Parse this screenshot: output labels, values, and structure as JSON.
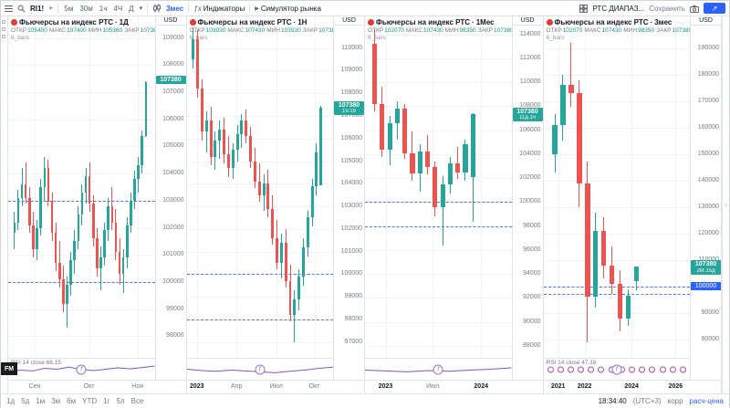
{
  "colors": {
    "up": "#26a69a",
    "down": "#ef5350",
    "accent": "#2962ff",
    "grid": "#f0f3fa",
    "rsi": "#7e57c2"
  },
  "toolbar": {
    "symbol": "RI1!",
    "compare": "+",
    "timeframes": [
      "5м",
      "30м",
      "1ч",
      "4Ч",
      "Д"
    ],
    "interval_label": "3мес",
    "indicators_label": "Индикаторы",
    "simulator_label": "Симулятор рынка",
    "layout_name": "РТС ДИАПАЗ...",
    "save_label": "Сохранить",
    "icons": {
      "caret": "▾",
      "publish": "↗",
      "simulator": "▶",
      "indicators": "ƒx",
      "collapse": "‹"
    }
  },
  "footer": {
    "ranges": [
      "1д",
      "5д",
      "1м",
      "3м",
      "6м",
      "YTD",
      "1г",
      "5л",
      "Все"
    ],
    "clock": "18:34:40",
    "timezone": "(UTC+3)",
    "adjust_label": "корр",
    "settlement_label": "расч-цена"
  },
  "watermark": "FM",
  "panels": [
    {
      "title": "Фьючерсы на индекс РТС",
      "sep": "·",
      "interval": "1Д",
      "currency": "USD",
      "study_label": "6_bars",
      "ohlc": {
        "o_label": "ОТКР",
        "o": "105400",
        "h_label": "МАКС",
        "h": "107400",
        "l_label": "МИН",
        "l": "105360",
        "c_label": "ЗАКР",
        "c": "107380"
      },
      "badge": {
        "value": "107380"
      },
      "rsi_label": "RSI 14 close 68.15",
      "rsi_points": [
        0.35,
        0.45,
        0.4,
        0.55,
        0.5,
        0.62,
        0.48,
        0.42,
        0.5,
        0.58,
        0.52,
        0.6,
        0.68
      ],
      "chart_data": {
        "type": "candlestick",
        "price_min": 97200,
        "price_max": 109800,
        "ticks": [
          109000,
          108000,
          107000,
          106000,
          105000,
          104000,
          103000,
          102000,
          101000,
          100000,
          99000,
          98000
        ],
        "levels": [
          {
            "price": 103000
          },
          {
            "price": 100000
          }
        ],
        "x_start": 0.03,
        "x_end": 0.95,
        "x_labels": [
          {
            "t": "Сен",
            "pos": 0.18
          },
          {
            "t": "Окт",
            "pos": 0.55
          },
          {
            "t": "Ноя",
            "pos": 0.88
          }
        ],
        "candles": [
          [
            101800,
            102600,
            101200,
            102200
          ],
          [
            102200,
            103400,
            101900,
            103100
          ],
          [
            103100,
            104200,
            102800,
            103600
          ],
          [
            103600,
            104400,
            102900,
            103100
          ],
          [
            103100,
            103500,
            101800,
            102100
          ],
          [
            102100,
            102600,
            100900,
            101200
          ],
          [
            101200,
            102300,
            100800,
            102000
          ],
          [
            102000,
            103800,
            101700,
            103500
          ],
          [
            103500,
            104600,
            103000,
            104200
          ],
          [
            104200,
            104500,
            102800,
            103000
          ],
          [
            103000,
            103300,
            101500,
            101800
          ],
          [
            101800,
            102200,
            100400,
            100700
          ],
          [
            100700,
            101500,
            99800,
            100100
          ],
          [
            100100,
            100600,
            98900,
            99200
          ],
          [
            99200,
            100200,
            98300,
            99900
          ],
          [
            99900,
            101100,
            99500,
            100800
          ],
          [
            100800,
            101900,
            100300,
            101500
          ],
          [
            101500,
            102800,
            101200,
            102500
          ],
          [
            102500,
            103600,
            102100,
            103300
          ],
          [
            103300,
            104200,
            102900,
            103900
          ],
          [
            103900,
            104400,
            102600,
            102900
          ],
          [
            102900,
            103200,
            101300,
            101600
          ],
          [
            101600,
            102000,
            100200,
            100500
          ],
          [
            100500,
            101300,
            99700,
            100900
          ],
          [
            100900,
            102200,
            100600,
            101900
          ],
          [
            101900,
            103100,
            101500,
            102800
          ],
          [
            102800,
            103500,
            101900,
            102200
          ],
          [
            102200,
            102700,
            100800,
            101100
          ],
          [
            101100,
            101600,
            99900,
            100300
          ],
          [
            100300,
            101200,
            99600,
            100900
          ],
          [
            100900,
            102400,
            100500,
            102100
          ],
          [
            102100,
            103300,
            101800,
            103000
          ],
          [
            103000,
            104100,
            102700,
            103800
          ],
          [
            103800,
            104600,
            103300,
            104300
          ],
          [
            104300,
            105600,
            104000,
            105400
          ],
          [
            105400,
            107400,
            105360,
            107380
          ]
        ]
      }
    },
    {
      "title": "Фьючерсы на индекс РТС",
      "sep": "·",
      "interval": "1Н",
      "currency": "USD",
      "study_label": "6_bars",
      "ohlc": {
        "o_label": "ОТКР",
        "o": "103930",
        "h_label": "МАКС",
        "h": "107430",
        "l_label": "МИН",
        "l": "103930",
        "c_label": "ЗАКР",
        "c": "107380"
      },
      "badge": {
        "value": "107380",
        "countdown": "15:19"
      },
      "rsi_points": [
        0.5,
        0.42,
        0.38,
        0.45,
        0.4,
        0.35,
        0.3,
        0.38,
        0.45,
        0.55,
        0.62
      ],
      "chart_data": {
        "type": "candlestick",
        "price_min": 96300,
        "price_max": 111400,
        "ticks": [
          110000,
          109000,
          108000,
          107000,
          106000,
          105000,
          104000,
          103000,
          102000,
          101000,
          100000,
          99000,
          98000,
          97000
        ],
        "levels": [
          {
            "price": 100000
          },
          {
            "price": 98000
          }
        ],
        "x_start": 0.03,
        "x_end": 0.93,
        "x_labels": [
          {
            "t": "2023",
            "pos": 0.07,
            "bold": true
          },
          {
            "t": "Апр",
            "pos": 0.34
          },
          {
            "t": "Июл",
            "pos": 0.61
          },
          {
            "t": "Окт",
            "pos": 0.87
          }
        ],
        "candles": [
          [
            109500,
            110900,
            109100,
            110400
          ],
          [
            110400,
            110800,
            107800,
            108200
          ],
          [
            108200,
            108600,
            105900,
            106300
          ],
          [
            106300,
            107200,
            105400,
            106800
          ],
          [
            106800,
            107400,
            104800,
            105200
          ],
          [
            105200,
            106300,
            104600,
            105900
          ],
          [
            105900,
            106800,
            105100,
            106400
          ],
          [
            106400,
            106900,
            104900,
            105300
          ],
          [
            105300,
            106100,
            104300,
            104700
          ],
          [
            104700,
            105800,
            104200,
            105500
          ],
          [
            105500,
            106600,
            105000,
            106200
          ],
          [
            106200,
            107100,
            105600,
            106800
          ],
          [
            106800,
            107300,
            105800,
            106100
          ],
          [
            106100,
            106500,
            104700,
            105000
          ],
          [
            105000,
            105600,
            103800,
            104100
          ],
          [
            104100,
            104900,
            103200,
            103500
          ],
          [
            103500,
            104400,
            102800,
            104000
          ],
          [
            104000,
            104600,
            102500,
            102900
          ],
          [
            102900,
            103500,
            101300,
            101600
          ],
          [
            101600,
            102400,
            100200,
            100500
          ],
          [
            100500,
            101800,
            99800,
            101400
          ],
          [
            101400,
            102000,
            99400,
            99700
          ],
          [
            99700,
            100400,
            97900,
            98200
          ],
          [
            98200,
            99300,
            97000,
            98900
          ],
          [
            98900,
            100200,
            98400,
            99900
          ],
          [
            99900,
            101600,
            99500,
            101200
          ],
          [
            101200,
            102800,
            100800,
            102500
          ],
          [
            102500,
            104200,
            102100,
            103900
          ],
          [
            103900,
            105800,
            103500,
            105400
          ],
          [
            103930,
            107430,
            103930,
            107380
          ]
        ]
      }
    },
    {
      "title": "Фьючерсы на индекс РТС",
      "sep": "·",
      "interval": "1Мес",
      "currency": "USD",
      "study_label": "6_bars",
      "ohlc": {
        "o_label": "ОТКР",
        "o": "102070",
        "h_label": "МАКС",
        "h": "107430",
        "l_label": "МИН",
        "l": "98350",
        "c_label": "ЗАКР",
        "c": "107380"
      },
      "badge": {
        "value": "107380",
        "countdown": "11д 1ч"
      },
      "rsi_points": [
        0.45,
        0.4,
        0.35,
        0.42,
        0.38,
        0.45,
        0.5,
        0.58
      ],
      "chart_data": {
        "type": "candlestick",
        "price_min": 87000,
        "price_max": 115500,
        "ticks": [
          114000,
          112000,
          110000,
          108000,
          106000,
          104000,
          102000,
          100000,
          98000,
          96000,
          94000,
          92000,
          90000,
          88000
        ],
        "levels": [
          {
            "price": 100000
          },
          {
            "price": 98000
          }
        ],
        "x_start": 0.04,
        "x_end": 0.76,
        "x_labels": [
          {
            "t": "2023",
            "pos": 0.14,
            "bold": true
          },
          {
            "t": "Июл",
            "pos": 0.46
          },
          {
            "t": "2024",
            "pos": 0.79,
            "bold": true
          }
        ],
        "candles": [
          [
            113200,
            114400,
            107600,
            108200
          ],
          [
            108200,
            109600,
            103800,
            104400
          ],
          [
            104400,
            107200,
            103100,
            106600
          ],
          [
            106600,
            108400,
            105200,
            107800
          ],
          [
            107800,
            108200,
            103600,
            104100
          ],
          [
            104100,
            105900,
            101800,
            102400
          ],
          [
            102400,
            104800,
            100900,
            104200
          ],
          [
            104200,
            105600,
            102300,
            102900
          ],
          [
            102900,
            103400,
            98800,
            99600
          ],
          [
            99600,
            102200,
            96400,
            101500
          ],
          [
            101500,
            103800,
            100700,
            103200
          ],
          [
            103200,
            104600,
            101900,
            102500
          ],
          [
            102500,
            105200,
            101800,
            104800
          ],
          [
            102070,
            107430,
            98350,
            107380
          ]
        ]
      }
    },
    {
      "title": "Фьючерсы на индекс РТС",
      "sep": "·",
      "interval": "3мес",
      "currency": "USD",
      "study_label": "6_bars",
      "ohlc": {
        "o_label": "ОТКР",
        "o": "102070",
        "h_label": "МАКС",
        "h": "107430",
        "l_label": "МИН",
        "l": "98350",
        "c_label": "ЗАКР",
        "c": "107380"
      },
      "badge": {
        "value": "107380",
        "countdown": "2М 15д"
      },
      "rsi_label": "RSI 14 close 47.16",
      "rsi_marker_count": 14,
      "chart_data": {
        "type": "candlestick",
        "price_min": 73000,
        "price_max": 202000,
        "ticks": [
          200000,
          190000,
          180000,
          170000,
          160000,
          150000,
          140000,
          130000,
          120000,
          110000,
          100000,
          90000,
          80000
        ],
        "levels": [
          {
            "price": 100000,
            "badge": true
          },
          {
            "price": 97000
          }
        ],
        "x_start": 0.05,
        "x_end": 0.66,
        "x_labels": [
          {
            "t": "2021",
            "pos": 0.1,
            "bold": true
          },
          {
            "t": "2022",
            "pos": 0.28,
            "bold": true
          },
          {
            "t": "2024",
            "pos": 0.6,
            "bold": true
          },
          {
            "t": "2026",
            "pos": 0.9,
            "bold": true
          }
        ],
        "candles": [
          [
            150000,
            165000,
            143000,
            161000
          ],
          [
            161000,
            180000,
            155000,
            176000
          ],
          [
            176000,
            192000,
            168000,
            173000
          ],
          [
            173000,
            178000,
            130000,
            139000
          ],
          [
            139000,
            147000,
            79000,
            96000
          ],
          [
            96000,
            128000,
            92000,
            121000
          ],
          [
            121000,
            126000,
            103000,
            108000
          ],
          [
            108000,
            115000,
            97000,
            101000
          ],
          [
            101000,
            106000,
            83000,
            88000
          ],
          [
            88000,
            99000,
            85000,
            96500
          ],
          [
            102070,
            107430,
            98350,
            107380
          ]
        ]
      }
    }
  ]
}
